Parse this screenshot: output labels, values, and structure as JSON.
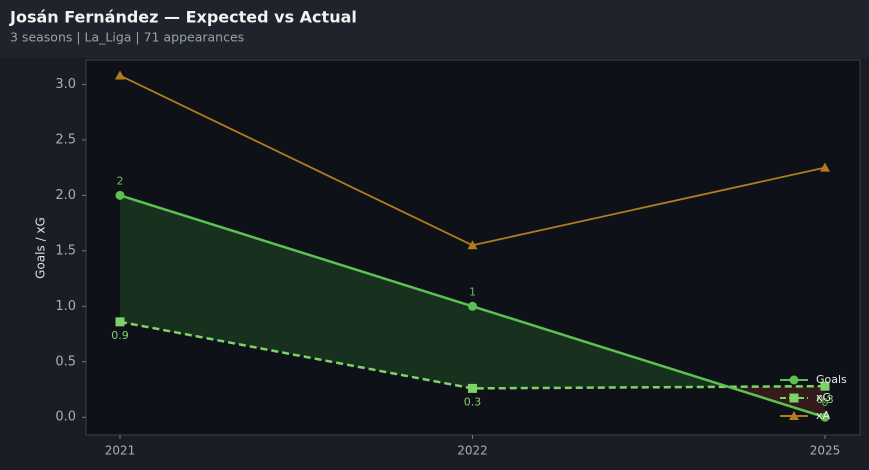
{
  "chart_data": {
    "type": "line",
    "title": "Josán Fernández — Expected vs Actual",
    "subtitle": "3 seasons | La_Liga | 71 appearances",
    "y_label": "Goals / xG",
    "categories": [
      "2021",
      "2022",
      "2025"
    ],
    "series": [
      {
        "name": "Goals",
        "color": "#5cc152",
        "marker": "circle",
        "dashed": false,
        "values": [
          2,
          1,
          0
        ]
      },
      {
        "name": "xG",
        "color": "#7ed26a",
        "marker": "square",
        "dashed": true,
        "values": [
          0.86,
          0.26,
          0.28
        ],
        "value_labels": [
          "0.9",
          "0.3",
          "0.3"
        ]
      },
      {
        "name": "xA",
        "color": "#b07d1e",
        "marker": "triangle",
        "dashed": false,
        "values": [
          3.08,
          1.55,
          2.25
        ]
      }
    ],
    "ylim": [
      -0.16,
      3.22
    ],
    "yticks": [
      {
        "value": 0,
        "label": "0.0"
      },
      {
        "value": 0.5,
        "label": "0.5"
      },
      {
        "value": 1,
        "label": "1.0"
      },
      {
        "value": 1.5,
        "label": "1.5"
      },
      {
        "value": 2,
        "label": "2.0"
      },
      {
        "value": 2.5,
        "label": "2.5"
      },
      {
        "value": 3,
        "label": "3.0"
      }
    ],
    "legend": "lower right"
  }
}
